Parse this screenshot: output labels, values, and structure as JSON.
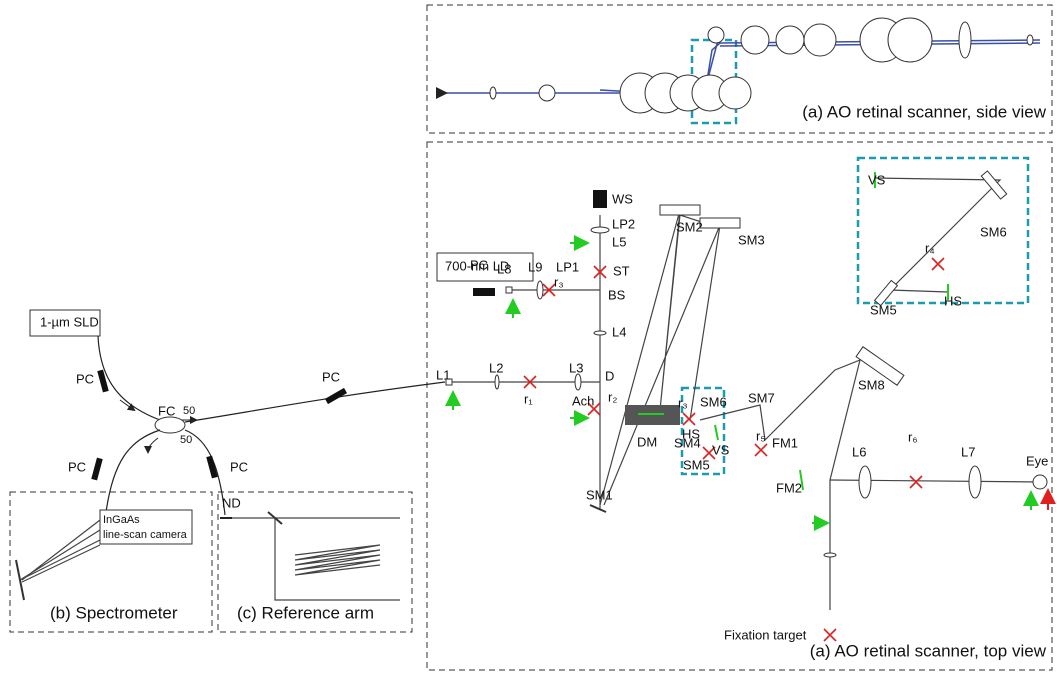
{
  "panels": {
    "side_view": "(a) AO retinal scanner, side view",
    "top_view": "(a) AO retinal scanner, top view",
    "spectrometer": "(b) Spectrometer",
    "reference_arm": "(c) Reference arm"
  },
  "sources": {
    "sld": "1-µm SLD",
    "ld": "700-nm LD",
    "camera": [
      "InGaAs",
      "line-scan camera"
    ]
  },
  "labels": [
    "PC",
    "FC",
    "50",
    "50",
    "PC",
    "PC",
    "ND",
    "PC",
    "L1",
    "L2",
    "r₁",
    "L3",
    "D",
    "Ach",
    "r₂",
    "DM",
    "r₃",
    "SM6",
    "HS",
    "VS",
    "SM4",
    "SM5",
    "SM7",
    "r₅",
    "FM1",
    "SM8",
    "FM2",
    "L6",
    "r₆",
    "L7",
    "Eye",
    "Fixation target",
    "SM1",
    "L4",
    "BS",
    "ST",
    "L5",
    "LP2",
    "WS",
    "LP1",
    "r₃",
    "L9",
    "L8",
    "PC",
    "SM2",
    "SM3"
  ],
  "inset_labels": [
    "VS",
    "SM6",
    "r₄",
    "SM5",
    "HS"
  ]
}
